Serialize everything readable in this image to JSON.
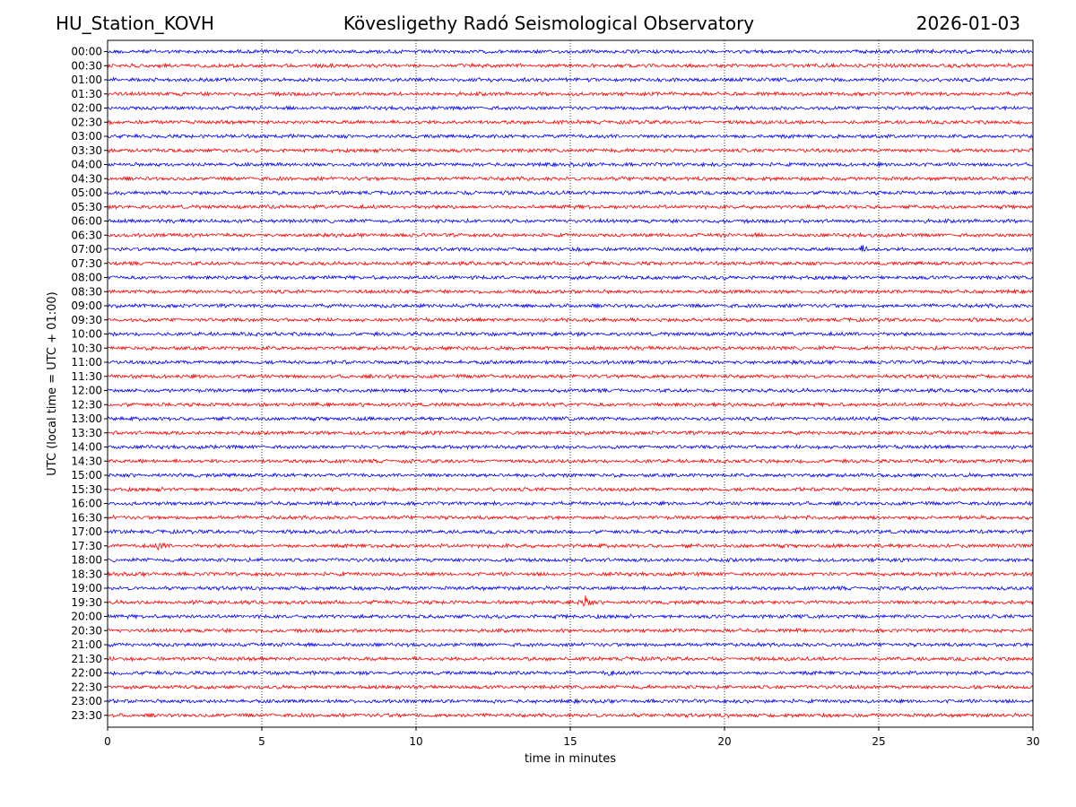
{
  "header": {
    "station": "HU_Station_KOVH",
    "title": "Kövesligethy Radó Seismological Observatory",
    "date": "2026-01-03"
  },
  "chart_data": {
    "type": "line",
    "subtype": "helicorder",
    "xlabel": "time in minutes",
    "ylabel": "UTC (local time = UTC + 01:00)",
    "xlim": [
      0,
      30
    ],
    "x_ticks": [
      "0",
      "5",
      "10",
      "15",
      "20",
      "25",
      "30"
    ],
    "vertical_gridlines_minutes": [
      5,
      10,
      15,
      20,
      25
    ],
    "grid": "vertical dotted",
    "row_labels": [
      "00:00",
      "00:30",
      "01:00",
      "01:30",
      "02:00",
      "02:30",
      "03:00",
      "03:30",
      "04:00",
      "04:30",
      "05:00",
      "05:30",
      "06:00",
      "06:30",
      "07:00",
      "07:30",
      "08:00",
      "08:30",
      "09:00",
      "09:30",
      "10:00",
      "10:30",
      "11:00",
      "11:30",
      "12:00",
      "12:30",
      "13:00",
      "13:30",
      "14:00",
      "14:30",
      "15:00",
      "15:30",
      "16:00",
      "16:30",
      "17:00",
      "17:30",
      "18:00",
      "18:30",
      "19:00",
      "19:30",
      "20:00",
      "20:30",
      "21:00",
      "21:30",
      "22:00",
      "22:30",
      "23:00",
      "23:30"
    ],
    "colors": [
      "#0000ff",
      "#ff0000"
    ],
    "events": [
      {
        "row": "17:30",
        "minute": 1.7,
        "relative_amplitude": 2.0
      },
      {
        "row": "19:30",
        "minute": 15.5,
        "relative_amplitude": 4.5
      },
      {
        "row": "07:00",
        "minute": 24.5,
        "relative_amplitude": 1.8
      },
      {
        "row": "04:00",
        "minute": 26.0,
        "relative_amplitude": 1.6
      },
      {
        "row": "22:00",
        "minute": 16.3,
        "relative_amplitude": 1.5
      }
    ]
  }
}
